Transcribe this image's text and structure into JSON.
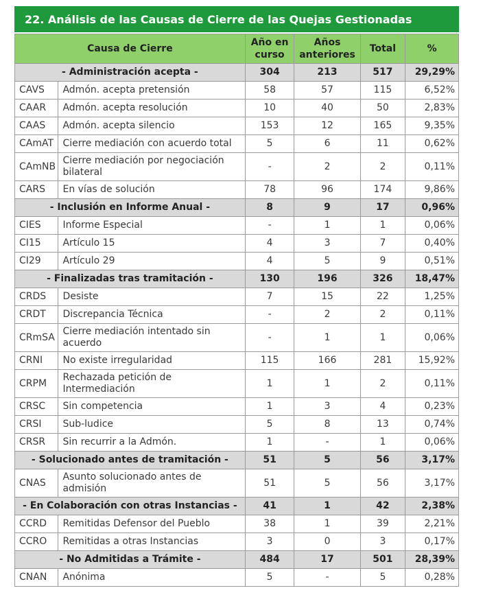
{
  "title": "22. Análisis de las Causas de Cierre de las Quejas Gestionadas",
  "headers": {
    "cause": "Causa de Cierre",
    "current_year": "Año en curso",
    "previous_years": "Años anteriores",
    "total": "Total",
    "pct": "%"
  },
  "groups": [
    {
      "name": "- Administración acepta -",
      "cur": "304",
      "prev": "213",
      "total": "517",
      "pct": "29,29%",
      "rows": [
        {
          "code": "CAVS",
          "desc": "Admón. acepta pretensión",
          "cur": "58",
          "prev": "57",
          "total": "115",
          "pct": "6,52%"
        },
        {
          "code": "CAAR",
          "desc": "Admón. acepta resolución",
          "cur": "10",
          "prev": "40",
          "total": "50",
          "pct": "2,83%"
        },
        {
          "code": "CAAS",
          "desc": "Admón. acepta silencio",
          "cur": "153",
          "prev": "12",
          "total": "165",
          "pct": "9,35%"
        },
        {
          "code": "CAmAT",
          "desc": "Cierre mediación con acuerdo total",
          "cur": "5",
          "prev": "6",
          "total": "11",
          "pct": "0,62%"
        },
        {
          "code": "CAmNB",
          "desc": "Cierre mediación por negociación bilateral",
          "cur": "-",
          "prev": "2",
          "total": "2",
          "pct": "0,11%",
          "tall": true
        },
        {
          "code": "CARS",
          "desc": "En vías de solución",
          "cur": "78",
          "prev": "96",
          "total": "174",
          "pct": "9,86%"
        }
      ]
    },
    {
      "name": "- Inclusión en Informe Anual -",
      "cur": "8",
      "prev": "9",
      "total": "17",
      "pct": "0,96%",
      "rows": [
        {
          "code": "CIES",
          "desc": "Informe Especial",
          "cur": "-",
          "prev": "1",
          "total": "1",
          "pct": "0,06%"
        },
        {
          "code": "CI15",
          "desc": "Artículo 15",
          "cur": "4",
          "prev": "3",
          "total": "7",
          "pct": "0,40%"
        },
        {
          "code": "CI29",
          "desc": "Artículo 29",
          "cur": "4",
          "prev": "5",
          "total": "9",
          "pct": "0,51%"
        }
      ]
    },
    {
      "name": "- Finalizadas tras tramitación -",
      "cur": "130",
      "prev": "196",
      "total": "326",
      "pct": "18,47%",
      "rows": [
        {
          "code": "CRDS",
          "desc": "Desiste",
          "cur": "7",
          "prev": "15",
          "total": "22",
          "pct": "1,25%"
        },
        {
          "code": "CRDT",
          "desc": "Discrepancia Técnica",
          "cur": "-",
          "prev": "2",
          "total": "2",
          "pct": "0,11%"
        },
        {
          "code": "CRmSA",
          "desc": "Cierre mediación intentado sin acuerdo",
          "cur": "-",
          "prev": "1",
          "total": "1",
          "pct": "0,06%",
          "tall": true
        },
        {
          "code": "CRNI",
          "desc": "No existe irregularidad",
          "cur": "115",
          "prev": "166",
          "total": "281",
          "pct": "15,92%"
        },
        {
          "code": "CRPM",
          "desc": "Rechazada petición de Intermediación",
          "cur": "1",
          "prev": "1",
          "total": "2",
          "pct": "0,11%",
          "tall": true
        },
        {
          "code": "CRSC",
          "desc": "Sin competencia",
          "cur": "1",
          "prev": "3",
          "total": "4",
          "pct": "0,23%"
        },
        {
          "code": "CRSI",
          "desc": "Sub-ludice",
          "cur": "5",
          "prev": "8",
          "total": "13",
          "pct": "0,74%"
        },
        {
          "code": "CRSR",
          "desc": "Sin recurrir a la Admón.",
          "cur": "1",
          "prev": "-",
          "total": "1",
          "pct": "0,06%"
        }
      ]
    },
    {
      "name": "- Solucionado antes de tramitación -",
      "cur": "51",
      "prev": "5",
      "total": "56",
      "pct": "3,17%",
      "rows": [
        {
          "code": "CNAS",
          "desc": "Asunto solucionado antes de admisión",
          "cur": "51",
          "prev": "5",
          "total": "56",
          "pct": "3,17%",
          "tall": true
        }
      ]
    },
    {
      "name": "- En Colaboración con otras Instancias -",
      "cur": "41",
      "prev": "1",
      "total": "42",
      "pct": "2,38%",
      "rows": [
        {
          "code": "CCRD",
          "desc": "Remitidas Defensor del Pueblo",
          "cur": "38",
          "prev": "1",
          "total": "39",
          "pct": "2,21%"
        },
        {
          "code": "CCRO",
          "desc": "Remitidas a otras Instancias",
          "cur": "3",
          "prev": "0",
          "total": "3",
          "pct": "0,17%"
        }
      ]
    },
    {
      "name": "- No Admitidas a Trámite -",
      "cur": "484",
      "prev": "17",
      "total": "501",
      "pct": "28,39%",
      "rows": [
        {
          "code": "CNAN",
          "desc": "Anónima",
          "cur": "5",
          "prev": "-",
          "total": "5",
          "pct": "0,28%"
        }
      ]
    }
  ]
}
